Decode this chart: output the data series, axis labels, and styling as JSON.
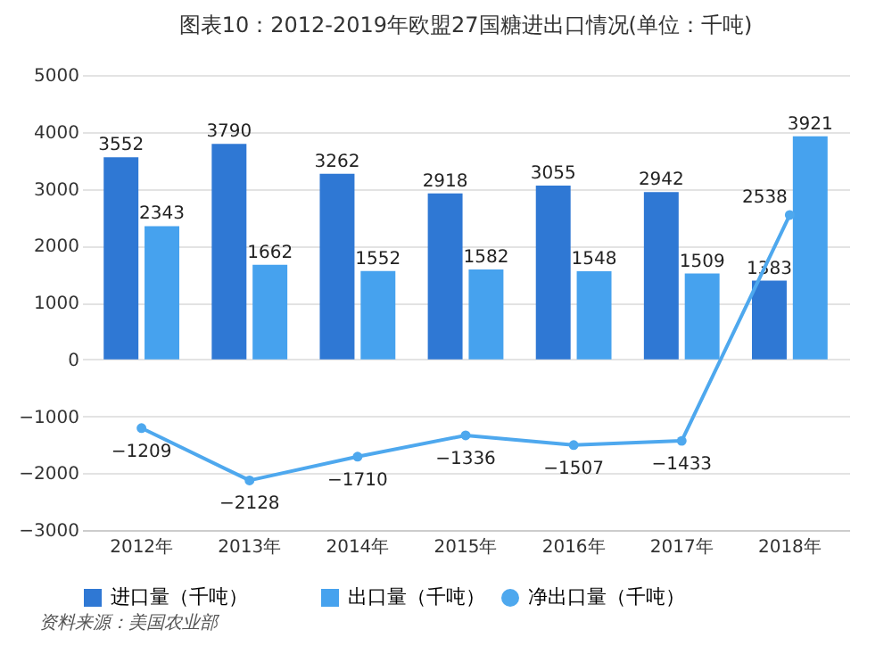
{
  "chart_data": {
    "type": "bar",
    "title": "图表10：2012-2019年欧盟27国糖进出口情况(单位：千吨)",
    "categories": [
      "2012年",
      "2013年",
      "2014年",
      "2015年",
      "2016年",
      "2017年",
      "2018年"
    ],
    "series": [
      {
        "name": "进口量（千吨）",
        "type": "bar",
        "color": "#2f78d4",
        "values": [
          3552,
          3790,
          3262,
          2918,
          3055,
          2942,
          1383
        ]
      },
      {
        "name": "出口量（千吨）",
        "type": "bar",
        "color": "#46a2ee",
        "values": [
          2343,
          1662,
          1552,
          1582,
          1548,
          1509,
          3921
        ]
      },
      {
        "name": "净出口量（千吨）",
        "type": "line",
        "color": "#4ea8ee",
        "values": [
          -1209,
          -2128,
          -1710,
          -1336,
          -1507,
          -1433,
          2538
        ]
      }
    ],
    "ylim": [
      -3000,
      5000
    ],
    "yticks": [
      -3000,
      -2000,
      -1000,
      0,
      1000,
      2000,
      3000,
      4000,
      5000
    ],
    "grid": "y",
    "legend": "bottom",
    "marker": "circle",
    "data_labels": true,
    "annotations": [
      "资料来源：美国农业部"
    ]
  }
}
